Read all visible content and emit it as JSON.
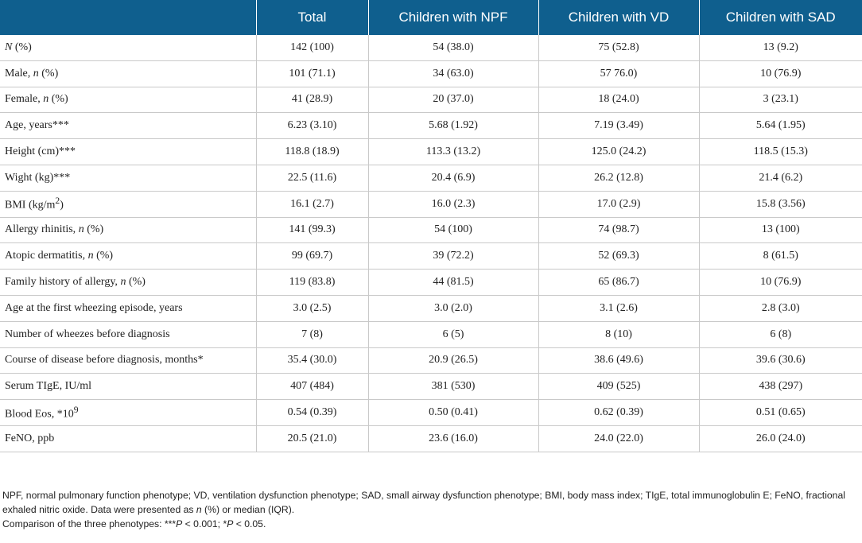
{
  "table": {
    "headers": [
      "",
      "Total",
      "Children with NPF",
      "Children with VD",
      "Children with SAD"
    ],
    "rows": [
      {
        "label": "N (%)",
        "values": [
          "142 (100)",
          "54 (38.0)",
          "75 (52.8)",
          "13 (9.2)"
        ]
      },
      {
        "label": "Male, n (%)",
        "values": [
          "101 (71.1)",
          "34 (63.0)",
          "57 76.0)",
          "10 (76.9)"
        ]
      },
      {
        "label": "Female, n (%)",
        "values": [
          "41 (28.9)",
          "20 (37.0)",
          "18 (24.0)",
          "3 (23.1)"
        ]
      },
      {
        "label": "Age, years***",
        "values": [
          "6.23 (3.10)",
          "5.68 (1.92)",
          "7.19 (3.49)",
          "5.64 (1.95)"
        ]
      },
      {
        "label": "Height (cm)***",
        "values": [
          "118.8 (18.9)",
          "113.3 (13.2)",
          "125.0 (24.2)",
          "118.5 (15.3)"
        ]
      },
      {
        "label": "Wight (kg)***",
        "values": [
          "22.5 (11.6)",
          "20.4 (6.9)",
          "26.2 (12.8)",
          "21.4 (6.2)"
        ]
      },
      {
        "label": "BMI (kg/m2)",
        "values": [
          "16.1 (2.7)",
          "16.0 (2.3)",
          "17.0 (2.9)",
          "15.8 (3.56)"
        ]
      },
      {
        "label": "Allergy rhinitis, n (%)",
        "values": [
          "141 (99.3)",
          "54 (100)",
          "74 (98.7)",
          "13 (100)"
        ]
      },
      {
        "label": "Atopic dermatitis, n (%)",
        "values": [
          "99 (69.7)",
          "39 (72.2)",
          "52 (69.3)",
          "8 (61.5)"
        ]
      },
      {
        "label": "Family history of allergy, n (%)",
        "values": [
          "119 (83.8)",
          "44 (81.5)",
          "65 (86.7)",
          "10 (76.9)"
        ]
      },
      {
        "label": "Age at the first wheezing episode, years",
        "values": [
          "3.0 (2.5)",
          "3.0 (2.0)",
          "3.1 (2.6)",
          "2.8 (3.0)"
        ]
      },
      {
        "label": "Number of wheezes before diagnosis",
        "values": [
          "7 (8)",
          "6 (5)",
          "8 (10)",
          "6 (8)"
        ]
      },
      {
        "label": "Course of disease before diagnosis, months*",
        "values": [
          "35.4 (30.0)",
          "20.9 (26.5)",
          "38.6 (49.6)",
          "39.6 (30.6)"
        ]
      },
      {
        "label": "Serum TIgE, IU/ml",
        "values": [
          "407 (484)",
          "381 (530)",
          "409 (525)",
          "438 (297)"
        ]
      },
      {
        "label": "Blood Eos, *109",
        "values": [
          "0.54 (0.39)",
          "0.50 (0.41)",
          "0.62 (0.39)",
          "0.51 (0.65)"
        ]
      },
      {
        "label": "FeNO, ppb",
        "values": [
          "20.5 (21.0)",
          "23.6 (16.0)",
          "24.0 (22.0)",
          "26.0 (24.0)"
        ]
      }
    ]
  },
  "notes": {
    "line1": "NPF, normal pulmonary function phenotype; VD, ventilation dysfunction phenotype; SAD, small airway dysfunction phenotype; BMI, body mass index; TIgE, total immunoglobulin E; FeNO, fractional exhaled nitric oxide. Data were presented as n (%) or median (IQR).",
    "line2": "Comparison of the three phenotypes: ***P < 0.001; *P < 0.05."
  }
}
